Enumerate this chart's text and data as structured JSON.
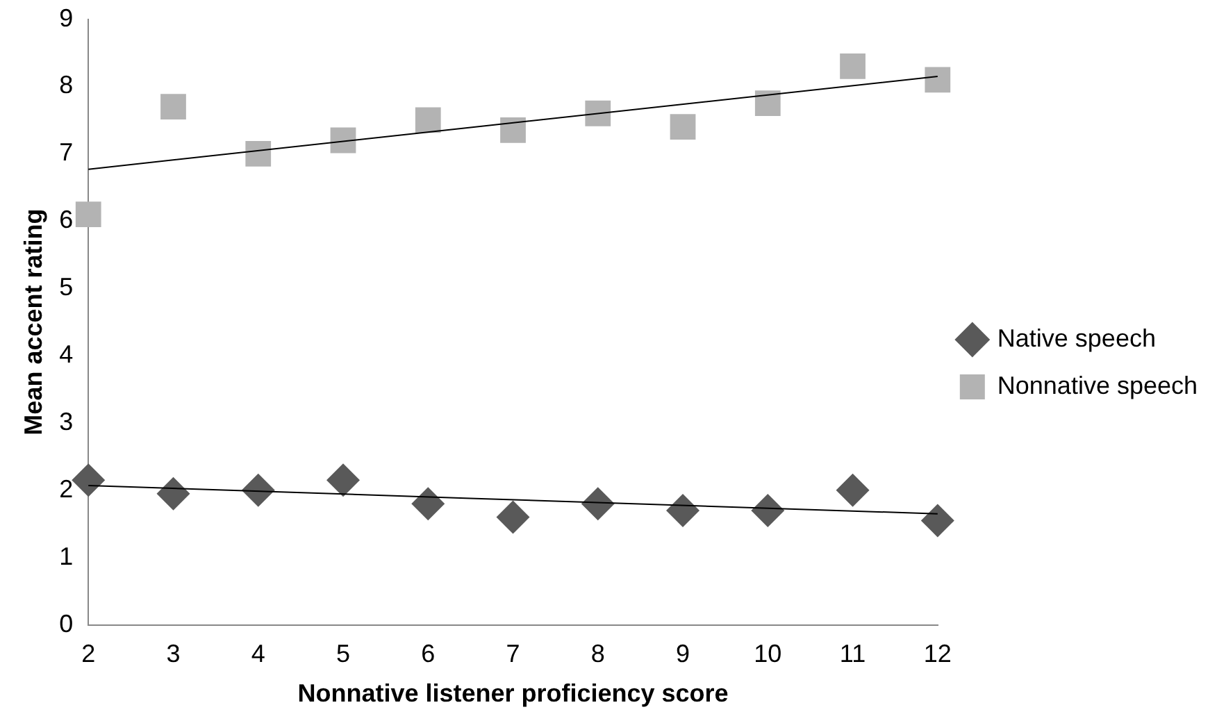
{
  "chart_data": {
    "type": "scatter",
    "xlabel": "Nonnative listener proficiency score",
    "ylabel": "Mean accent rating",
    "x": [
      2,
      3,
      4,
      5,
      6,
      7,
      8,
      9,
      10,
      11,
      12
    ],
    "xlim": [
      2,
      12
    ],
    "xticks": [
      2,
      3,
      4,
      5,
      6,
      7,
      8,
      9,
      10,
      11,
      12
    ],
    "ylim": [
      0,
      9
    ],
    "yticks": [
      0,
      1,
      2,
      3,
      4,
      5,
      6,
      7,
      8,
      9
    ],
    "grid": false,
    "legend": "right",
    "series": [
      {
        "name": "Native speech",
        "color": "#595959",
        "marker": "diamond",
        "values": [
          2.15,
          1.95,
          2.0,
          2.15,
          1.8,
          1.6,
          1.8,
          1.7,
          1.7,
          2.0,
          1.55
        ]
      },
      {
        "name": "Nonnative speech",
        "color": "#b3b3b3",
        "marker": "square",
        "values": [
          6.1,
          7.7,
          7.0,
          7.2,
          7.5,
          7.35,
          7.6,
          7.4,
          7.75,
          8.3,
          8.1
        ]
      },
      {
        "type": "line",
        "color": "#000000",
        "marker": "none",
        "x": [
          2,
          6.5,
          12
        ],
        "values": [
          2.07,
          1.88,
          1.65
        ]
      },
      {
        "type": "line",
        "color": "#000000",
        "marker": "none",
        "x": [
          2,
          6.5,
          12
        ],
        "values": [
          6.77,
          7.39,
          8.15
        ]
      }
    ]
  }
}
